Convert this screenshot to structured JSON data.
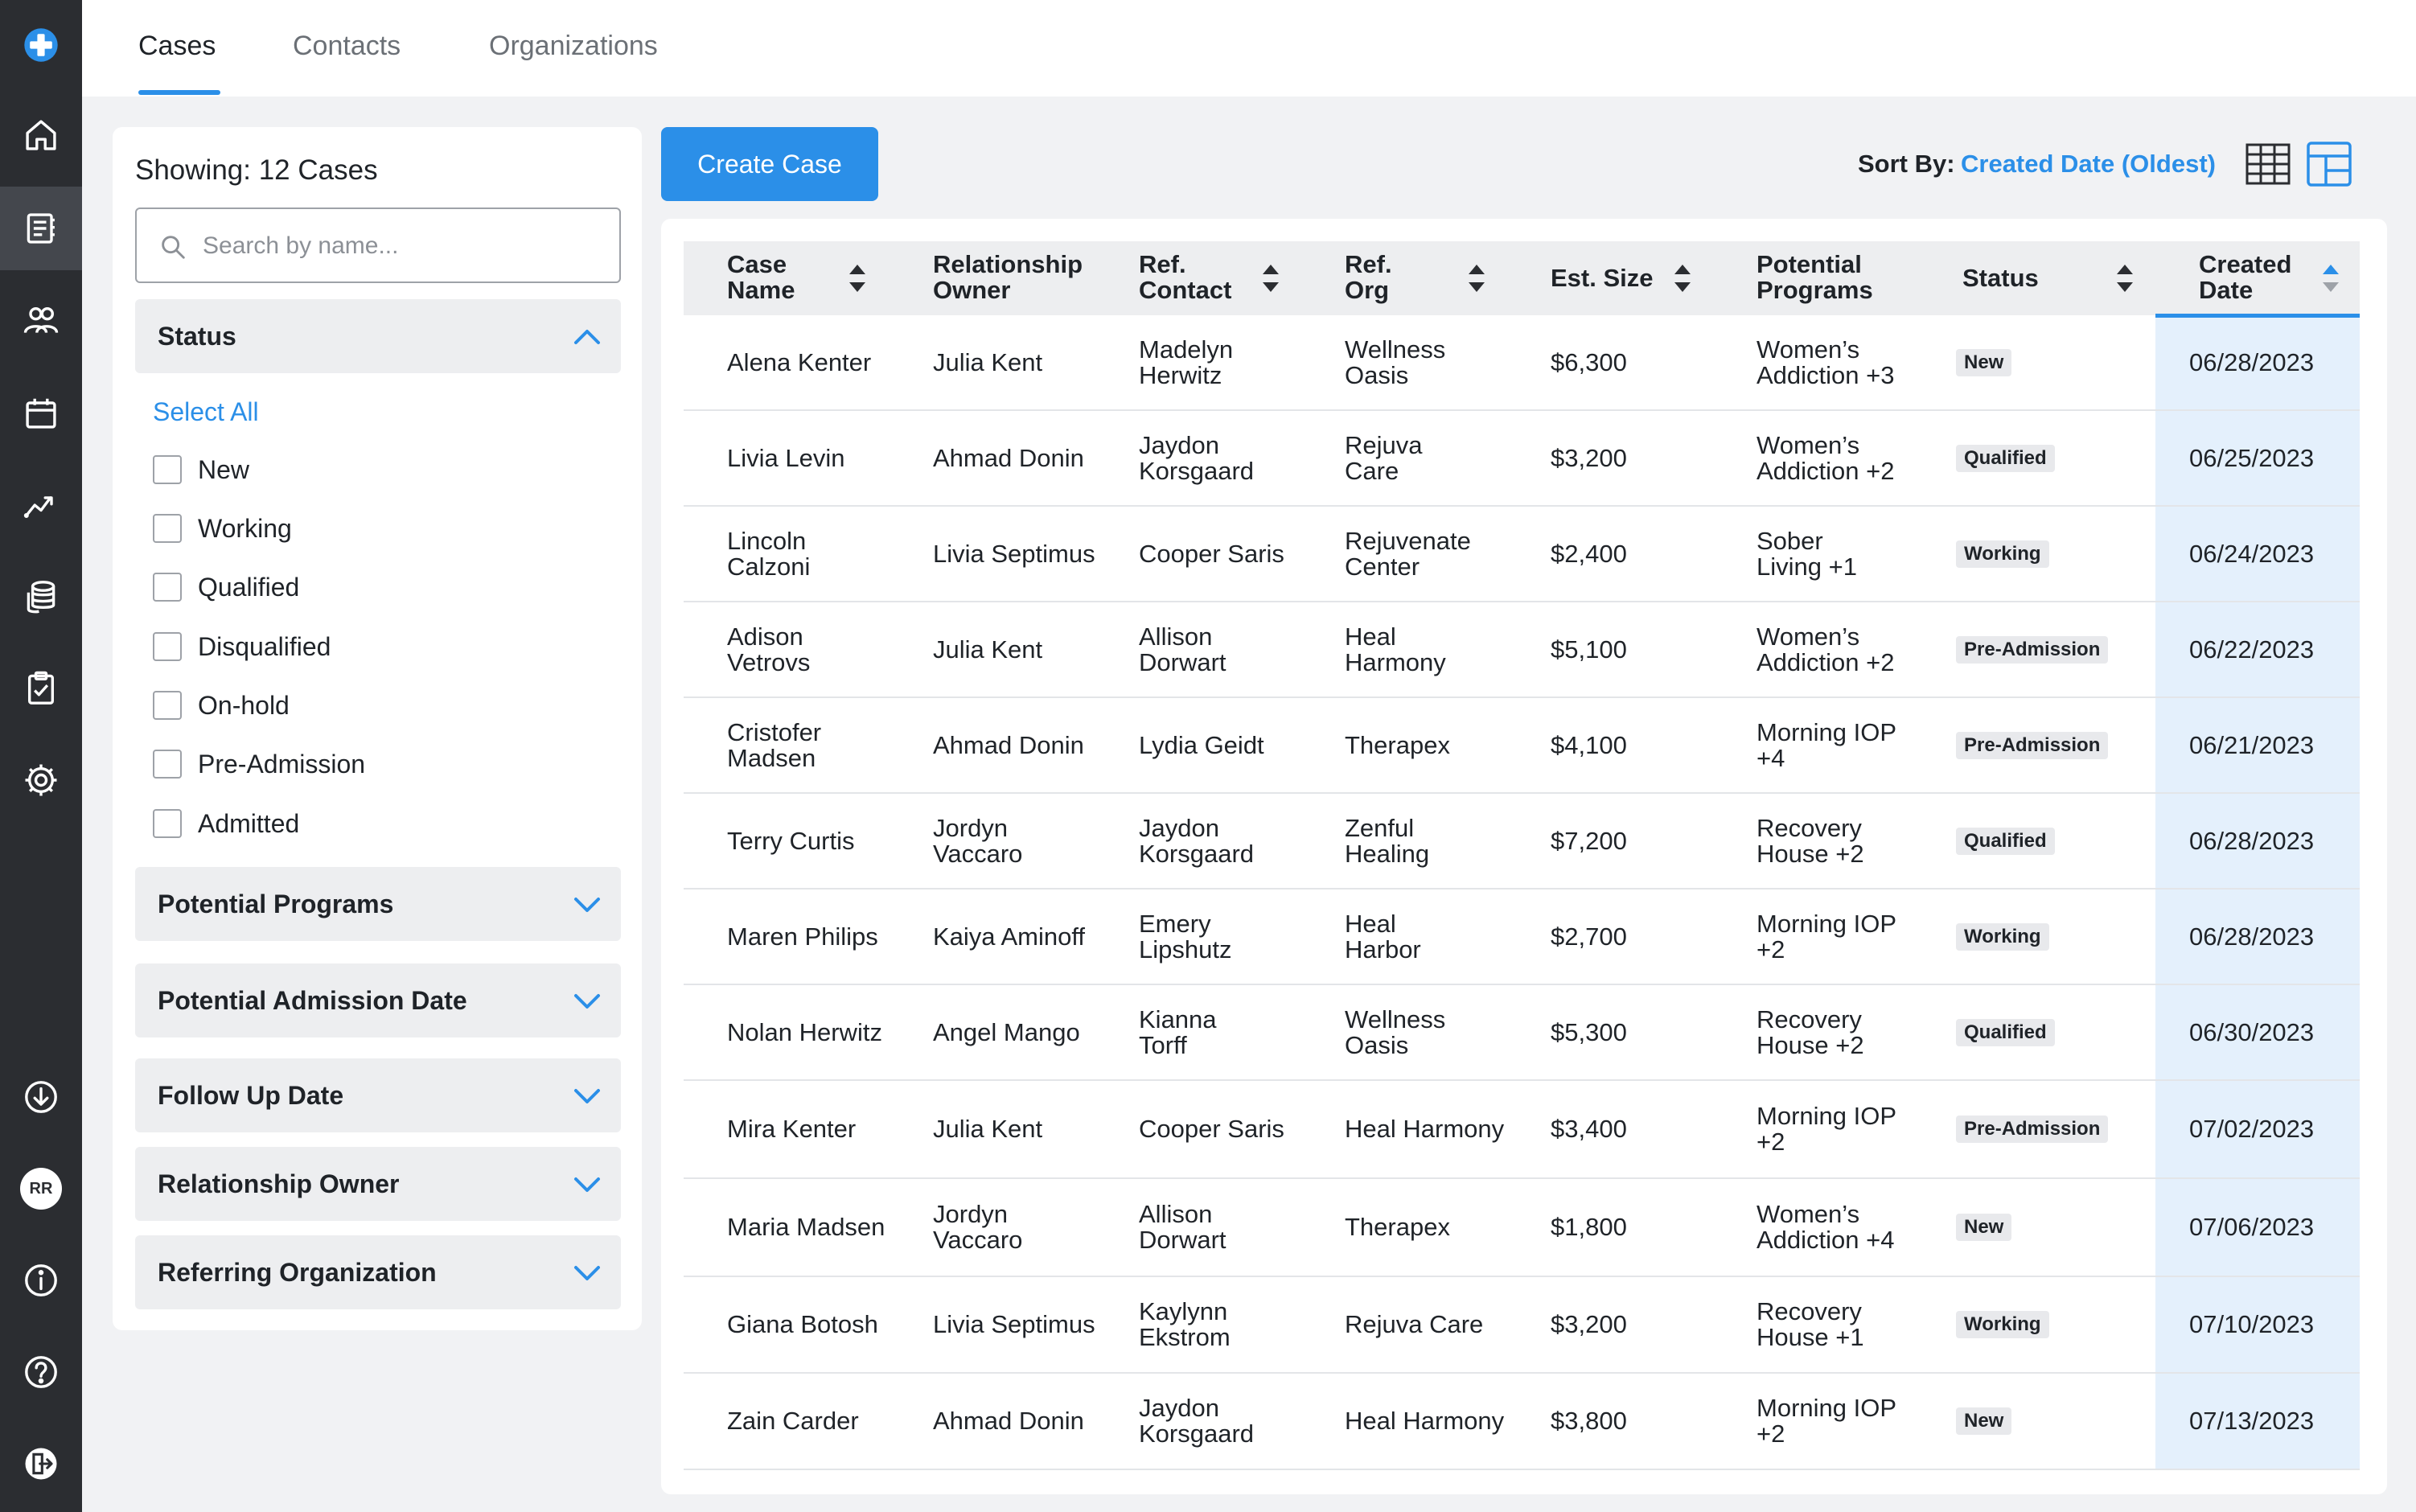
{
  "colors": {
    "accent": "#2B8FE8",
    "rail": "#2B2D31",
    "highlight": "#E4F0FC"
  },
  "nav": {
    "top": [
      "logo-cross-icon",
      "home-icon",
      "cases-book-icon",
      "contacts-people-icon",
      "calendar-icon",
      "analytics-chart-icon",
      "billing-stack-icon",
      "tasks-clipboard-icon",
      "settings-gear-icon"
    ],
    "bottom": [
      "download-icon",
      "avatar",
      "info-icon",
      "help-icon",
      "logout-icon"
    ],
    "avatar_initials": "RR"
  },
  "tabs": [
    {
      "label": "Cases",
      "active": true
    },
    {
      "label": "Contacts",
      "active": false
    },
    {
      "label": "Organizations",
      "active": false
    }
  ],
  "filters": {
    "showing": "Showing: 12 Cases",
    "search_placeholder": "Search by name...",
    "status_title": "Status",
    "select_all": "Select All",
    "status_options": [
      "New",
      "Working",
      "Qualified",
      "Disqualified",
      "On-hold",
      "Pre-Admission",
      "Admitted"
    ],
    "sections": [
      "Potential Programs",
      "Potential Admission Date",
      "Follow Up Date",
      "Relationship Owner",
      "Referring Organization"
    ]
  },
  "toolbar": {
    "create_label": "Create Case",
    "sort_label": "Sort By:",
    "sort_value": "Created Date (Oldest)"
  },
  "table": {
    "columns": [
      {
        "l1": "Case",
        "l2": "Name"
      },
      {
        "l1": "Relationship",
        "l2": "Owner"
      },
      {
        "l1": "Ref.",
        "l2": "Contact"
      },
      {
        "l1": "Ref.",
        "l2": "Org"
      },
      {
        "l1": "Est. Size",
        "l2": ""
      },
      {
        "l1": "Potential",
        "l2": "Programs"
      },
      {
        "l1": "Status",
        "l2": ""
      },
      {
        "l1": "Created",
        "l2": "Date"
      }
    ],
    "rows": [
      {
        "name": [
          "Alena Kenter"
        ],
        "owner": [
          "Julia Kent"
        ],
        "contact": [
          "Madelyn",
          "Herwitz"
        ],
        "org": [
          "Wellness",
          "Oasis"
        ],
        "size": "$6,300",
        "programs": [
          "Women’s",
          "Addiction +3"
        ],
        "status": "New",
        "date": "06/28/2023"
      },
      {
        "name": [
          "Livia Levin"
        ],
        "owner": [
          "Ahmad Donin"
        ],
        "contact": [
          "Jaydon",
          "Korsgaard"
        ],
        "org": [
          "Rejuva",
          "Care"
        ],
        "size": "$3,200",
        "programs": [
          "Women’s",
          "Addiction +2"
        ],
        "status": "Qualified",
        "date": "06/25/2023"
      },
      {
        "name": [
          "Lincoln",
          "Calzoni"
        ],
        "owner": [
          "Livia Septimus"
        ],
        "contact": [
          "Cooper Saris"
        ],
        "org": [
          "Rejuvenate",
          "Center"
        ],
        "size": "$2,400",
        "programs": [
          "Sober",
          "Living +1"
        ],
        "status": "Working",
        "date": "06/24/2023"
      },
      {
        "name": [
          "Adison",
          "Vetrovs"
        ],
        "owner": [
          "Julia Kent"
        ],
        "contact": [
          "Allison",
          "Dorwart"
        ],
        "org": [
          "Heal",
          "Harmony"
        ],
        "size": "$5,100",
        "programs": [
          "Women’s",
          "Addiction +2"
        ],
        "status": "Pre-Admission",
        "date": "06/22/2023"
      },
      {
        "name": [
          "Cristofer",
          "Madsen"
        ],
        "owner": [
          "Ahmad Donin"
        ],
        "contact": [
          "Lydia Geidt"
        ],
        "org": [
          "Therapex"
        ],
        "size": "$4,100",
        "programs": [
          "Morning IOP",
          "+4"
        ],
        "status": "Pre-Admission",
        "date": "06/21/2023"
      },
      {
        "name": [
          "Terry Curtis"
        ],
        "owner": [
          "Jordyn",
          "Vaccaro"
        ],
        "contact": [
          "Jaydon",
          "Korsgaard"
        ],
        "org": [
          "Zenful",
          "Healing"
        ],
        "size": "$7,200",
        "programs": [
          "Recovery",
          "House +2"
        ],
        "status": "Qualified",
        "date": "06/28/2023"
      },
      {
        "name": [
          "Maren Philips"
        ],
        "owner": [
          "Kaiya Aminoff"
        ],
        "contact": [
          "Emery",
          "Lipshutz"
        ],
        "org": [
          "Heal",
          "Harbor"
        ],
        "size": "$2,700",
        "programs": [
          "Morning IOP",
          "+2"
        ],
        "status": "Working",
        "date": "06/28/2023"
      },
      {
        "name": [
          "Nolan Herwitz"
        ],
        "owner": [
          "Angel Mango"
        ],
        "contact": [
          "Kianna",
          "Torff"
        ],
        "org": [
          "Wellness",
          "Oasis"
        ],
        "size": "$5,300",
        "programs": [
          "Recovery",
          "House +2"
        ],
        "status": "Qualified",
        "date": "06/30/2023"
      },
      {
        "name": [
          "Mira Kenter"
        ],
        "owner": [
          "Julia Kent"
        ],
        "contact": [
          "Cooper Saris"
        ],
        "org": [
          "Heal Harmony"
        ],
        "size": "$3,400",
        "programs": [
          "Morning IOP",
          "+2"
        ],
        "status": "Pre-Admission",
        "date": "07/02/2023"
      },
      {
        "name": [
          "Maria Madsen"
        ],
        "owner": [
          "Jordyn",
          "Vaccaro"
        ],
        "contact": [
          "Allison",
          "Dorwart"
        ],
        "org": [
          "Therapex"
        ],
        "size": "$1,800",
        "programs": [
          "Women’s",
          "Addiction +4"
        ],
        "status": "New",
        "date": "07/06/2023"
      },
      {
        "name": [
          "Giana Botosh"
        ],
        "owner": [
          "Livia Septimus"
        ],
        "contact": [
          "Kaylynn",
          "Ekstrom"
        ],
        "org": [
          "Rejuva Care"
        ],
        "size": "$3,200",
        "programs": [
          "Recovery",
          "House +1"
        ],
        "status": "Working",
        "date": "07/10/2023"
      },
      {
        "name": [
          "Zain Carder"
        ],
        "owner": [
          "Ahmad Donin"
        ],
        "contact": [
          "Jaydon",
          "Korsgaard"
        ],
        "org": [
          "Heal Harmony"
        ],
        "size": "$3,800",
        "programs": [
          "Morning IOP",
          "+2"
        ],
        "status": "New",
        "date": "07/13/2023"
      }
    ]
  }
}
